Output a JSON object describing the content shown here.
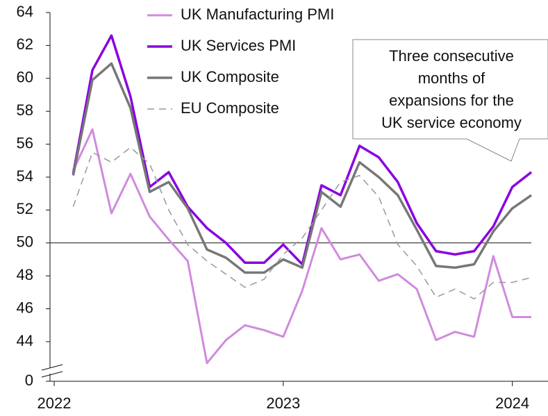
{
  "chart_data": {
    "type": "line",
    "x": [
      2022.083,
      2022.167,
      2022.25,
      2022.333,
      2022.417,
      2022.5,
      2022.583,
      2022.667,
      2022.75,
      2022.833,
      2022.917,
      2023,
      2023.083,
      2023.167,
      2023.25,
      2023.333,
      2023.417,
      2023.5,
      2023.583,
      2023.667,
      2023.75,
      2023.833,
      2023.917,
      2024,
      2024.083
    ],
    "xlim": [
      2022,
      2024.083
    ],
    "xticks": [
      2022,
      2023,
      2024
    ],
    "ylim": [
      41.6,
      64
    ],
    "yticks": [
      0,
      44,
      46,
      48,
      50,
      52,
      54,
      56,
      58,
      60,
      62,
      64
    ],
    "axis_break": true,
    "reference_line": 50,
    "legend": "top-left",
    "series": [
      {
        "name": "UK Manufacturing PMI",
        "color": "#d18ade",
        "dashed": false,
        "width": 3,
        "values": [
          54.4,
          56.9,
          51.8,
          54.2,
          51.6,
          50.2,
          48.9,
          42.7,
          44.1,
          45.0,
          44.7,
          44.3,
          47.1,
          50.9,
          49.0,
          49.3,
          47.7,
          48.1,
          47.2,
          44.1,
          44.6,
          44.3,
          49.2,
          45.5,
          45.5
        ]
      },
      {
        "name": "UK Services PMI",
        "color": "#8a00e0",
        "dashed": false,
        "width": 3.5,
        "values": [
          54.2,
          60.5,
          62.6,
          58.9,
          53.4,
          54.3,
          52.2,
          50.9,
          50.0,
          48.8,
          48.8,
          49.9,
          48.7,
          53.5,
          52.9,
          55.9,
          55.2,
          53.7,
          51.2,
          49.5,
          49.3,
          49.5,
          51.0,
          53.4,
          54.3
        ]
      },
      {
        "name": "UK Composite",
        "color": "#777777",
        "dashed": false,
        "width": 3.5,
        "values": [
          54.1,
          59.9,
          60.9,
          58.2,
          53.1,
          53.7,
          52.1,
          49.6,
          49.1,
          48.2,
          48.2,
          49.0,
          48.5,
          53.1,
          52.2,
          54.9,
          54.0,
          52.9,
          50.8,
          48.6,
          48.5,
          48.7,
          50.7,
          52.1,
          52.9
        ]
      },
      {
        "name": "EU Composite",
        "color": "#999999",
        "dashed": true,
        "width": 1.5,
        "values": [
          52.2,
          55.5,
          54.9,
          55.8,
          54.8,
          52.0,
          49.9,
          48.9,
          48.1,
          47.3,
          47.8,
          49.3,
          50.3,
          52.0,
          53.7,
          54.1,
          52.8,
          49.9,
          48.6,
          46.7,
          47.2,
          46.6,
          47.6,
          47.6,
          47.9
        ]
      }
    ],
    "annotation": [
      "Three consecutive",
      "months of",
      "expansions for the",
      "UK service economy"
    ]
  }
}
